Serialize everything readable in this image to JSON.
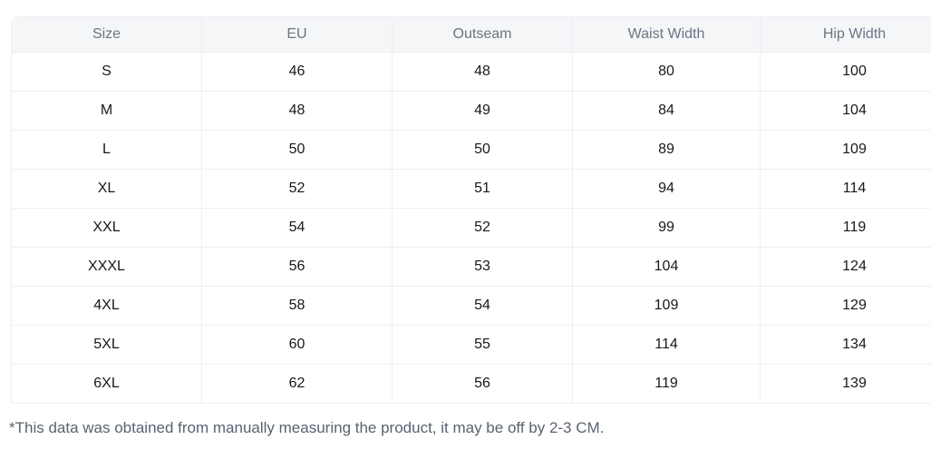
{
  "chart_data": {
    "type": "table",
    "columns": [
      "Size",
      "EU",
      "Outseam",
      "Waist Width",
      "Hip Width"
    ],
    "rows": [
      [
        "S",
        "46",
        "48",
        "80",
        "100"
      ],
      [
        "M",
        "48",
        "49",
        "84",
        "104"
      ],
      [
        "L",
        "50",
        "50",
        "89",
        "109"
      ],
      [
        "XL",
        "52",
        "51",
        "94",
        "114"
      ],
      [
        "XXL",
        "54",
        "52",
        "99",
        "119"
      ],
      [
        "XXXL",
        "56",
        "53",
        "104",
        "124"
      ],
      [
        "4XL",
        "58",
        "54",
        "109",
        "129"
      ],
      [
        "5XL",
        "60",
        "55",
        "114",
        "134"
      ],
      [
        "6XL",
        "62",
        "56",
        "119",
        "139"
      ]
    ],
    "footnote": "*This data was obtained from manually measuring the product, it may be off by 2-3 CM."
  },
  "colors": {
    "header_bg": "#f5f6f8",
    "header_text": "#6b7583",
    "body_text": "#17181a",
    "border": "#edeff2",
    "footnote_text": "#596270"
  }
}
